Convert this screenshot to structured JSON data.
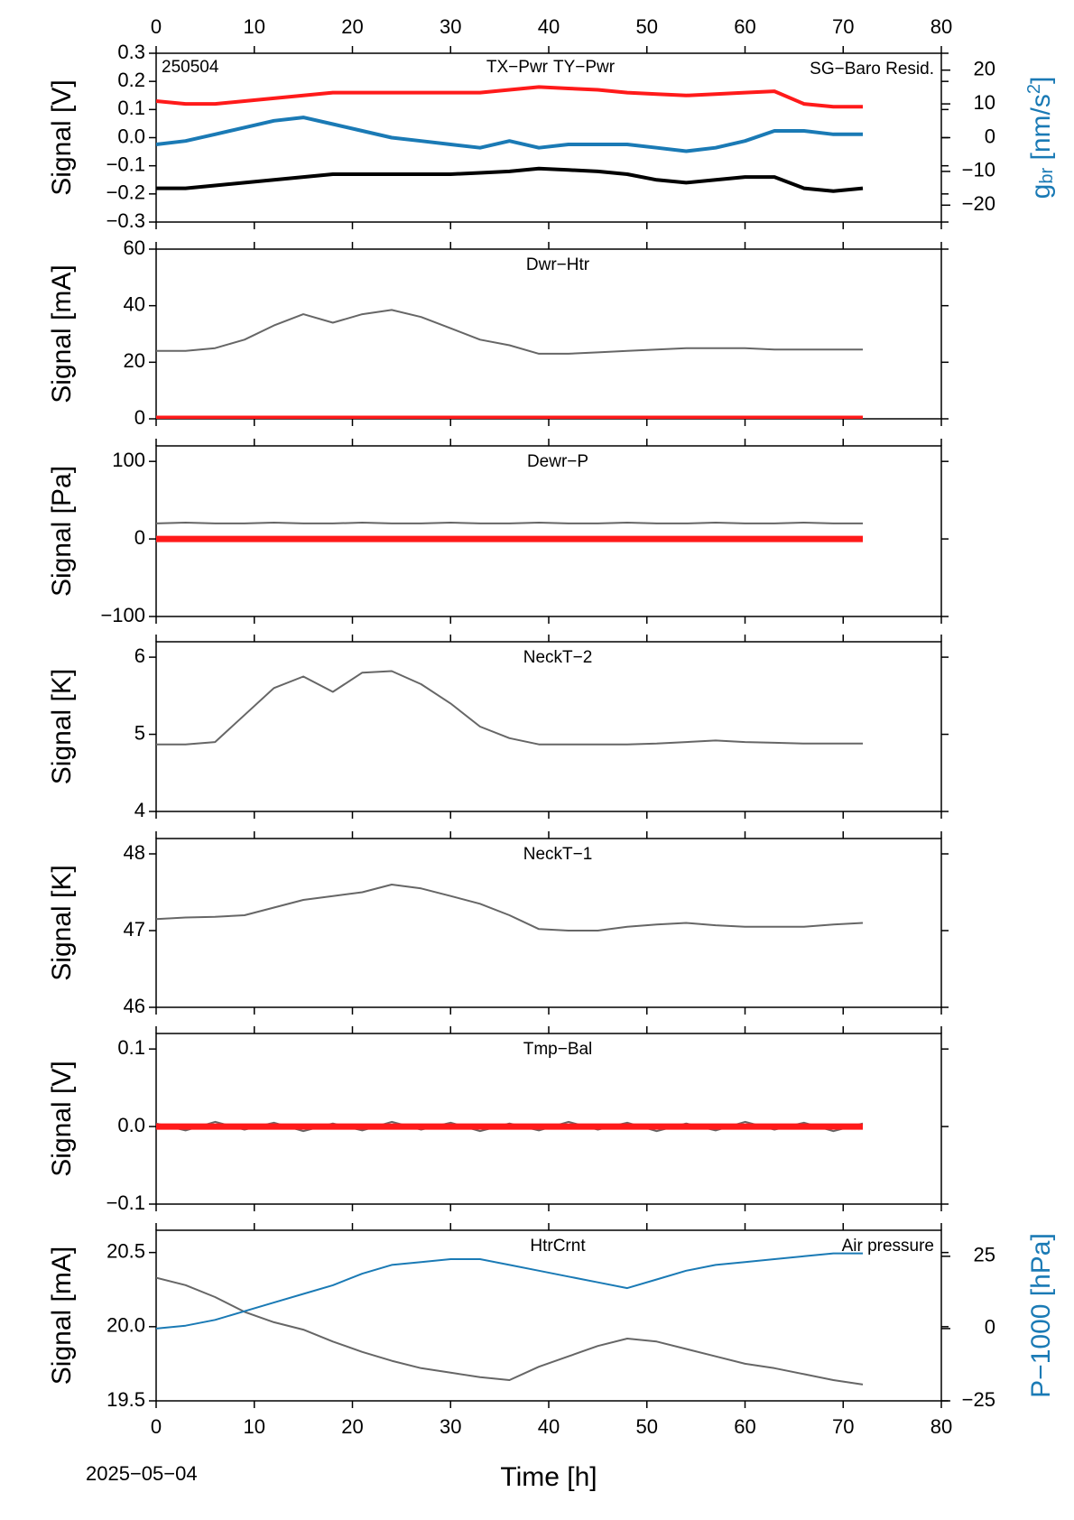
{
  "chart_data": [
    {
      "type": "line",
      "annotation": "250504",
      "ylabel": "Signal [V]",
      "y2label": [
        "g",
        "br",
        " [nm/s",
        "2",
        "]"
      ],
      "y2color": "#1a7ab5",
      "x": [
        0,
        3,
        6,
        9,
        12,
        15,
        18,
        21,
        24,
        27,
        30,
        33,
        36,
        39,
        42,
        45,
        48,
        51,
        54,
        57,
        60,
        63,
        66,
        69,
        72
      ],
      "xlim": [
        0,
        80
      ],
      "xticks": [
        0,
        10,
        20,
        30,
        40,
        50,
        60,
        70,
        80
      ],
      "ylim": [
        -0.3,
        0.3
      ],
      "yticks": [
        {
          "value": -0.3,
          "label": "−0.3"
        },
        {
          "value": -0.2,
          "label": "−0.2"
        },
        {
          "value": -0.1,
          "label": "−0.1"
        },
        {
          "value": 0,
          "label": "0.0"
        },
        0.1,
        0.2,
        0.3
      ],
      "y2lim": [
        -25,
        25
      ],
      "y2ticks": [
        {
          "value": -20,
          "label": "−20"
        },
        {
          "value": -10,
          "label": "−10"
        },
        0,
        10,
        20
      ],
      "series": [
        {
          "name": "TX−Pwr",
          "color": "#000000",
          "values": [
            -0.18,
            -0.18,
            -0.17,
            -0.16,
            -0.15,
            -0.14,
            -0.13,
            -0.13,
            -0.13,
            -0.13,
            -0.13,
            -0.125,
            -0.12,
            -0.11,
            -0.115,
            -0.12,
            -0.13,
            -0.15,
            -0.16,
            -0.15,
            -0.14,
            -0.14,
            -0.18,
            -0.19,
            -0.18
          ]
        },
        {
          "name": "TY−Pwr",
          "color": "#ff1a1a",
          "values": [
            0.13,
            0.12,
            0.12,
            0.13,
            0.14,
            0.15,
            0.16,
            0.16,
            0.16,
            0.16,
            0.16,
            0.16,
            0.17,
            0.18,
            0.175,
            0.17,
            0.16,
            0.155,
            0.15,
            0.155,
            0.16,
            0.165,
            0.12,
            0.11,
            0.11
          ]
        },
        {
          "name": "SG−Baro Resid.",
          "color": "#1a7ab5",
          "axis": "y2",
          "values": [
            -2,
            -1,
            1,
            3,
            5,
            6,
            4,
            2,
            0,
            -1,
            -2,
            -3,
            -1,
            -3,
            -2,
            -2,
            -2,
            -3,
            -4,
            -3,
            -1,
            2,
            2,
            1,
            1
          ]
        }
      ]
    },
    {
      "type": "line",
      "title": "Dwr−Htr",
      "ylabel": "Signal [mA]",
      "x": [
        0,
        3,
        6,
        9,
        12,
        15,
        18,
        21,
        24,
        27,
        30,
        33,
        36,
        39,
        42,
        45,
        48,
        51,
        54,
        57,
        60,
        63,
        66,
        69,
        72
      ],
      "xlim": [
        0,
        80
      ],
      "xticks": [
        0,
        10,
        20,
        30,
        40,
        50,
        60,
        70,
        80
      ],
      "ylim": [
        0,
        60
      ],
      "yticks": [
        0,
        20,
        40,
        60
      ],
      "series": [
        {
          "color": "#666666",
          "values": [
            24,
            24,
            25,
            28,
            33,
            37,
            34,
            37,
            38.5,
            36,
            32,
            28,
            26,
            23,
            23,
            23.5,
            24,
            24.5,
            25,
            25,
            25,
            24.5,
            24.5,
            24.5,
            24.5
          ]
        },
        {
          "color": "#ff1a1a",
          "values": [
            0,
            0,
            0,
            0,
            0,
            0,
            0,
            0,
            0,
            0,
            0,
            0,
            0,
            0,
            0,
            0,
            0,
            0,
            0,
            0,
            0,
            0,
            0,
            0,
            0
          ]
        }
      ]
    },
    {
      "type": "line",
      "title": "Dewr−P",
      "ylabel": "Signal [Pa]",
      "x": [
        0,
        3,
        6,
        9,
        12,
        15,
        18,
        21,
        24,
        27,
        30,
        33,
        36,
        39,
        42,
        45,
        48,
        51,
        54,
        57,
        60,
        63,
        66,
        69,
        72
      ],
      "xlim": [
        0,
        80
      ],
      "xticks": [
        0,
        10,
        20,
        30,
        40,
        50,
        60,
        70,
        80
      ],
      "ylim": [
        -100,
        120
      ],
      "yticks": [
        {
          "value": -100,
          "label": "−100"
        },
        0,
        100
      ],
      "series": [
        {
          "color": "#666666",
          "values": [
            20,
            21,
            20,
            20,
            21,
            20,
            20,
            21,
            20,
            20,
            21,
            20,
            20,
            21,
            20,
            20,
            21,
            20,
            20,
            21,
            20,
            20,
            21,
            20,
            20
          ]
        },
        {
          "color": "#ff1a1a",
          "values": [
            0,
            0,
            0,
            0,
            0,
            0,
            0,
            0,
            0,
            0,
            0,
            0,
            0,
            0,
            0,
            0,
            0,
            0,
            0,
            0,
            0,
            0,
            0,
            0,
            0
          ]
        }
      ]
    },
    {
      "type": "line",
      "title": "NeckT−2",
      "ylabel": "Signal [K]",
      "x": [
        0,
        3,
        6,
        9,
        12,
        15,
        18,
        21,
        24,
        27,
        30,
        33,
        36,
        39,
        42,
        45,
        48,
        51,
        54,
        57,
        60,
        63,
        66,
        69,
        72
      ],
      "xlim": [
        0,
        80
      ],
      "xticks": [
        0,
        10,
        20,
        30,
        40,
        50,
        60,
        70,
        80
      ],
      "ylim": [
        4,
        6.2
      ],
      "yticks": [
        4,
        5,
        6
      ],
      "series": [
        {
          "color": "#666666",
          "values": [
            4.87,
            4.87,
            4.9,
            5.25,
            5.6,
            5.75,
            5.55,
            5.8,
            5.82,
            5.65,
            5.4,
            5.1,
            4.95,
            4.87,
            4.87,
            4.87,
            4.87,
            4.88,
            4.9,
            4.92,
            4.9,
            4.89,
            4.88,
            4.88,
            4.88
          ]
        }
      ]
    },
    {
      "type": "line",
      "title": "NeckT−1",
      "ylabel": "Signal [K]",
      "x": [
        0,
        3,
        6,
        9,
        12,
        15,
        18,
        21,
        24,
        27,
        30,
        33,
        36,
        39,
        42,
        45,
        48,
        51,
        54,
        57,
        60,
        63,
        66,
        69,
        72
      ],
      "xlim": [
        0,
        80
      ],
      "xticks": [
        0,
        10,
        20,
        30,
        40,
        50,
        60,
        70,
        80
      ],
      "ylim": [
        46,
        48.2
      ],
      "yticks": [
        46,
        47,
        48
      ],
      "series": [
        {
          "color": "#666666",
          "values": [
            47.15,
            47.17,
            47.18,
            47.2,
            47.3,
            47.4,
            47.45,
            47.5,
            47.6,
            47.55,
            47.45,
            47.35,
            47.2,
            47.02,
            47.0,
            47.0,
            47.05,
            47.08,
            47.1,
            47.07,
            47.05,
            47.05,
            47.05,
            47.08,
            47.1
          ]
        }
      ]
    },
    {
      "type": "line",
      "title": "Tmp−Bal",
      "ylabel": "Signal [V]",
      "x": [
        0,
        3,
        6,
        9,
        12,
        15,
        18,
        21,
        24,
        27,
        30,
        33,
        36,
        39,
        42,
        45,
        48,
        51,
        54,
        57,
        60,
        63,
        66,
        69,
        72
      ],
      "xlim": [
        0,
        80
      ],
      "xticks": [
        0,
        10,
        20,
        30,
        40,
        50,
        60,
        70,
        80
      ],
      "ylim": [
        -0.1,
        0.12
      ],
      "yticks": [
        {
          "value": -0.1,
          "label": "−0.1"
        },
        {
          "value": 0,
          "label": "0.0"
        },
        0.1
      ],
      "series": [
        {
          "color": "#666666",
          "values": [
            0.004,
            -0.005,
            0.006,
            -0.004,
            0.005,
            -0.006,
            0.004,
            -0.005,
            0.006,
            -0.004,
            0.005,
            -0.006,
            0.004,
            -0.005,
            0.006,
            -0.004,
            0.005,
            -0.006,
            0.004,
            -0.005,
            0.006,
            -0.004,
            0.005,
            -0.006,
            0.004
          ]
        },
        {
          "color": "#ff1a1a",
          "values": [
            0,
            0,
            0,
            0,
            0,
            0,
            0,
            0,
            0,
            0,
            0,
            0,
            0,
            0,
            0,
            0,
            0,
            0,
            0,
            0,
            0,
            0,
            0,
            0,
            0
          ]
        }
      ]
    },
    {
      "type": "line",
      "title": "HtrCrnt",
      "ylabel": "Signal [mA]",
      "y2label": [
        "P−1000 [hPa]"
      ],
      "y2color": "#1a7ab5",
      "xlabel": "Time [h]",
      "annotation": "2025−05−04",
      "x": [
        0,
        3,
        6,
        9,
        12,
        15,
        18,
        21,
        24,
        27,
        30,
        33,
        36,
        39,
        42,
        45,
        48,
        51,
        54,
        57,
        60,
        63,
        66,
        69,
        72
      ],
      "xlim": [
        0,
        80
      ],
      "xticks": [
        0,
        10,
        20,
        30,
        40,
        50,
        60,
        70,
        80
      ],
      "ylim": [
        19.5,
        20.65
      ],
      "yticks": [
        19.5,
        {
          "value": 20,
          "label": "20.0"
        },
        20.5
      ],
      "y2lim": [
        -25,
        34
      ],
      "y2ticks": [
        {
          "value": -25,
          "label": "−25"
        },
        0,
        25
      ],
      "series": [
        {
          "color": "#666666",
          "values": [
            20.33,
            20.28,
            20.2,
            20.1,
            20.03,
            19.98,
            19.9,
            19.83,
            19.77,
            19.72,
            19.69,
            19.66,
            19.64,
            19.73,
            19.8,
            19.87,
            19.92,
            19.9,
            19.85,
            19.8,
            19.75,
            19.72,
            19.68,
            19.64,
            19.61
          ]
        },
        {
          "name": "Air pressure",
          "color": "#1a7ab5",
          "axis": "y2",
          "values": [
            0,
            1,
            3,
            6,
            9,
            12,
            15,
            19,
            22,
            23,
            24,
            24,
            22,
            20,
            18,
            16,
            14,
            17,
            20,
            22,
            23,
            24,
            25,
            26,
            26
          ]
        }
      ]
    }
  ]
}
